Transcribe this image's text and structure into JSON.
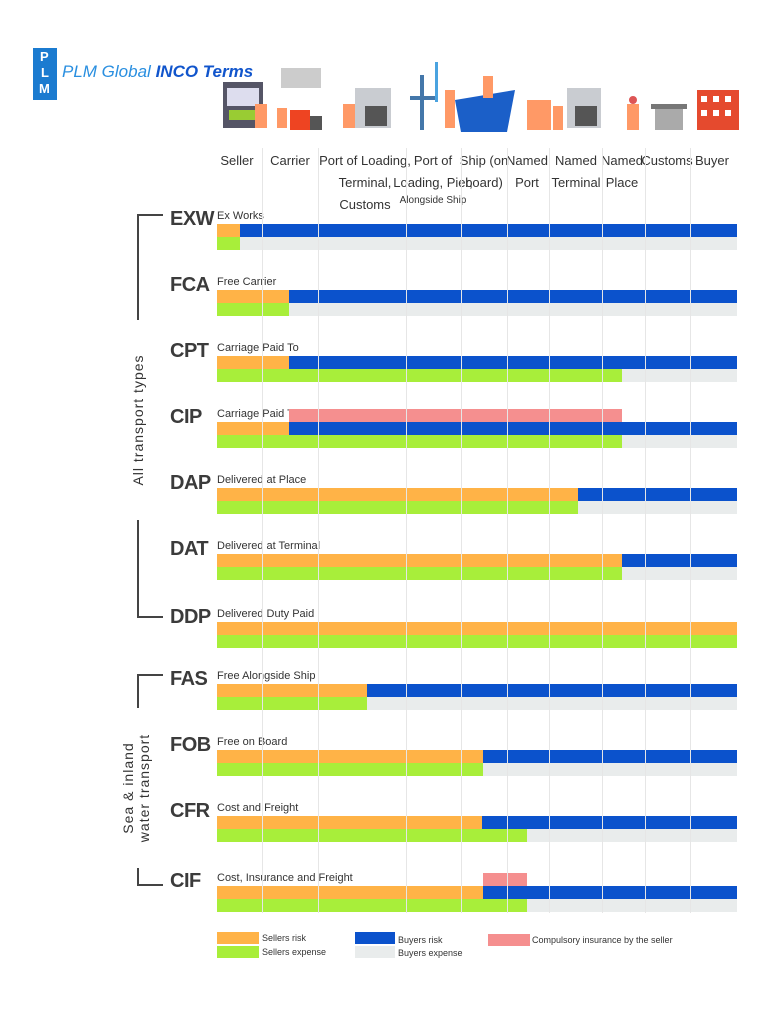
{
  "header": {
    "logo_letters": [
      "P",
      "L",
      "M"
    ],
    "brand_prefix": "PLM Global",
    "brand_bold": "INCO Terms"
  },
  "columns": [
    {
      "label": "Seller"
    },
    {
      "label": "Carrier"
    },
    {
      "label": "Port of Loading,\nTerminal, Customs"
    },
    {
      "label": "Port of\nLoading, Pier,",
      "sub": "Alongside Ship"
    },
    {
      "label": "Ship (on\nboard)"
    },
    {
      "label": "Named\nPort"
    },
    {
      "label": "Named\nTerminal"
    },
    {
      "label": "Named\nPlace"
    },
    {
      "label": "Customs"
    },
    {
      "label": "Buyer"
    }
  ],
  "groups": [
    {
      "label": "All transport types"
    },
    {
      "label": "Sea & inland\nwater transport"
    }
  ],
  "colors": {
    "sellers_risk": "#ffb347",
    "sellers_expense": "#a8ee3a",
    "buyers_risk": "#0b52cc",
    "buyers_expense": "#e9ecec",
    "insurance": "#f58f8f"
  },
  "scale_note": "bar positions expressed as fraction of the chart width",
  "terms": [
    {
      "code": "EXW",
      "name": "Ex Works",
      "seller_risk": 0.044,
      "seller_expense": 0.044,
      "insurance": null
    },
    {
      "code": "FCA",
      "name": "Free Carrier",
      "seller_risk": 0.139,
      "seller_expense": 0.139,
      "insurance": null
    },
    {
      "code": "CPT",
      "name": "Carriage Paid To",
      "seller_risk": 0.139,
      "seller_expense": 0.779,
      "insurance": null
    },
    {
      "code": "CIP",
      "name": "Carriage Paid To",
      "seller_risk": 0.139,
      "seller_expense": 0.779,
      "insurance": [
        0.139,
        0.779
      ]
    },
    {
      "code": "DAP",
      "name": "Delivered at Place",
      "seller_risk": 0.694,
      "seller_expense": 0.694,
      "insurance": null
    },
    {
      "code": "DAT",
      "name": "Delivered at Terminal",
      "seller_risk": 0.779,
      "seller_expense": 0.779,
      "insurance": null
    },
    {
      "code": "DDP",
      "name": "Delivered Duty Paid",
      "seller_risk": 1.0,
      "seller_expense": 1.0,
      "insurance": null
    },
    {
      "code": "FAS",
      "name": "Free Alongside Ship",
      "seller_risk": 0.288,
      "seller_expense": 0.288,
      "insurance": null
    },
    {
      "code": "FOB",
      "name": "Free on Board",
      "seller_risk": 0.511,
      "seller_expense": 0.511,
      "insurance": null
    },
    {
      "code": "CFR",
      "name": "Cost and Freight",
      "seller_risk": 0.509,
      "seller_expense": 0.596,
      "insurance": null
    },
    {
      "code": "CIF",
      "name": "Cost, Insurance and Freight",
      "seller_risk": 0.511,
      "seller_expense": 0.596,
      "insurance": [
        0.511,
        0.596
      ]
    }
  ],
  "legend": {
    "sellers_risk": "Sellers risk",
    "sellers_expense": "Sellers expense",
    "buyers_risk": "Buyers risk",
    "buyers_expense": "Buyers expense",
    "insurance": "Compulsory insurance by the seller"
  }
}
